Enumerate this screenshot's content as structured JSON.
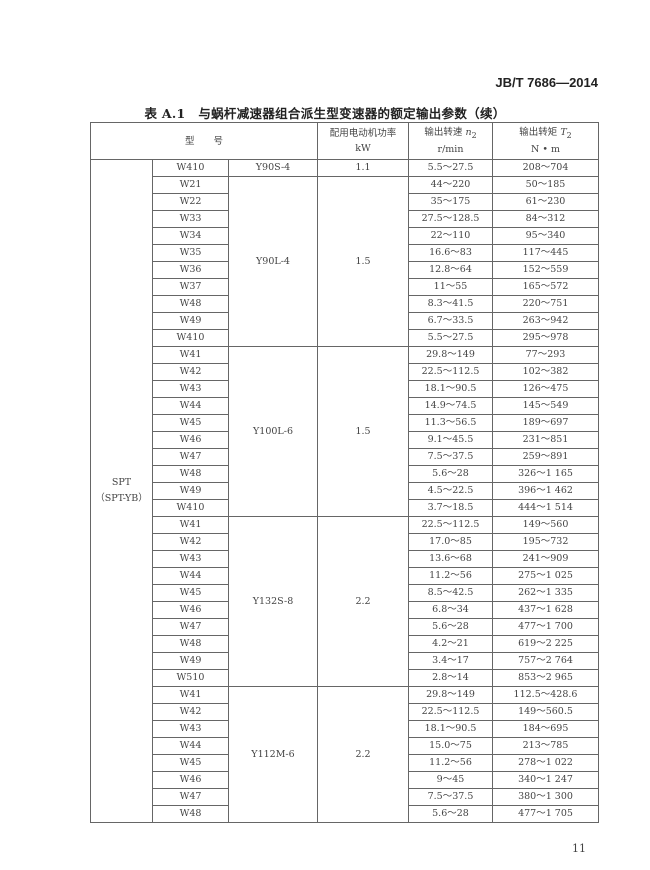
{
  "header": {
    "standard_no": "JB/T 7686—2014"
  },
  "table": {
    "caption": "表 A.1　与蜗杆减速器组合派生型变速器的额定输出参数（续）",
    "columns": {
      "model": "型　　号",
      "power_line1": "配用电动机功率",
      "power_unit": "kW",
      "speed_line1": "输出转速 ",
      "speed_sym": "n",
      "speed_sub": "2",
      "speed_unit": "r/min",
      "torque_line1": "输出转矩 ",
      "torque_sym": "T",
      "torque_sub": "2",
      "torque_unit": "N • m"
    },
    "series_label_line1": "SPT",
    "series_label_line2": "（SPT-YB）",
    "groups": [
      {
        "motor": "Y90S-4",
        "power": "1.1",
        "rows": [
          [
            "W410",
            "5.5～27.5",
            "208～704"
          ]
        ]
      },
      {
        "motor": "Y90L-4",
        "power": "1.5",
        "rows": [
          [
            "W21",
            "44～220",
            "50～185"
          ],
          [
            "W22",
            "35～175",
            "61～230"
          ],
          [
            "W33",
            "27.5～128.5",
            "84～312"
          ],
          [
            "W34",
            "22～110",
            "95～340"
          ],
          [
            "W35",
            "16.6～83",
            "117～445"
          ],
          [
            "W36",
            "12.8～64",
            "152～559"
          ],
          [
            "W37",
            "11～55",
            "165～572"
          ],
          [
            "W48",
            "8.3～41.5",
            "220～751"
          ],
          [
            "W49",
            "6.7～33.5",
            "263～942"
          ],
          [
            "W410",
            "5.5～27.5",
            "295～978"
          ]
        ]
      },
      {
        "motor": "Y100L-6",
        "power": "1.5",
        "rows": [
          [
            "W41",
            "29.8～149",
            "77～293"
          ],
          [
            "W42",
            "22.5～112.5",
            "102～382"
          ],
          [
            "W43",
            "18.1～90.5",
            "126～475"
          ],
          [
            "W44",
            "14.9～74.5",
            "145～549"
          ],
          [
            "W45",
            "11.3～56.5",
            "189～697"
          ],
          [
            "W46",
            "9.1～45.5",
            "231～851"
          ],
          [
            "W47",
            "7.5～37.5",
            "259～891"
          ],
          [
            "W48",
            "5.6～28",
            "326～1 165"
          ],
          [
            "W49",
            "4.5～22.5",
            "396～1 462"
          ],
          [
            "W410",
            "3.7～18.5",
            "444～1 514"
          ]
        ]
      },
      {
        "motor": "Y132S-8",
        "power": "2.2",
        "rows": [
          [
            "W41",
            "22.5～112.5",
            "149～560"
          ],
          [
            "W42",
            "17.0～85",
            "195～732"
          ],
          [
            "W43",
            "13.6～68",
            "241～909"
          ],
          [
            "W44",
            "11.2～56",
            "275～1 025"
          ],
          [
            "W45",
            "8.5～42.5",
            "262～1 335"
          ],
          [
            "W46",
            "6.8～34",
            "437～1 628"
          ],
          [
            "W47",
            "5.6～28",
            "477～1 700"
          ],
          [
            "W48",
            "4.2～21",
            "619～2 225"
          ],
          [
            "W49",
            "3.4～17",
            "757～2 764"
          ],
          [
            "W510",
            "2.8～14",
            "853～2 965"
          ]
        ]
      },
      {
        "motor": "Y112M-6",
        "power": "2.2",
        "rows": [
          [
            "W41",
            "29.8～149",
            "112.5～428.6"
          ],
          [
            "W42",
            "22.5～112.5",
            "149～560.5"
          ],
          [
            "W43",
            "18.1～90.5",
            "184～695"
          ],
          [
            "W44",
            "15.0～75",
            "213～785"
          ],
          [
            "W45",
            "11.2～56",
            "278～1 022"
          ],
          [
            "W46",
            "9～45",
            "340～1 247"
          ],
          [
            "W47",
            "7.5～37.5",
            "380～1 300"
          ],
          [
            "W48",
            "5.6～28",
            "477～1 705"
          ]
        ]
      }
    ]
  },
  "footer": {
    "page_number": "11"
  }
}
